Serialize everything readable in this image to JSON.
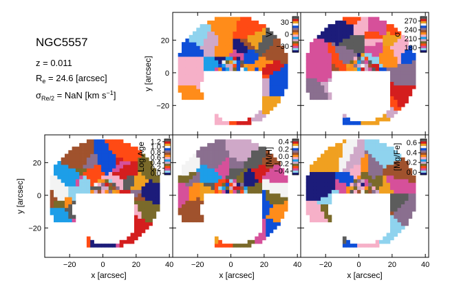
{
  "galaxy": {
    "name": "NGC5557",
    "redshift_text": "z = 0.011",
    "re_prefix": "R",
    "re_sub": "e",
    "re_value": " = 24.6 [arcsec]",
    "sigma_prefix": "σ",
    "sigma_sub": "Re/2",
    "sigma_value": " = NaN [km s",
    "sigma_sup": "−1",
    "sigma_suffix": "]"
  },
  "colors": {
    "colormap": [
      "#1c1c7a",
      "#0e4fd8",
      "#1d9ee8",
      "#8fd3ee",
      "#f3f3f3",
      "#f6b0c8",
      "#d6509a",
      "#f0a020",
      "#ff8c1a",
      "#ff4a14",
      "#d41e1e",
      "#a0522d",
      "#7a6a2a",
      "#5c5c5c",
      "#8a6f8f",
      "#cfa8c8"
    ],
    "frame": "#000000",
    "background": "#ffffff"
  },
  "chart_data": [
    {
      "type": "heatmap",
      "map": "velocity",
      "colorbar_label": "V",
      "colorbar_ticks": [
        "30",
        "0",
        "−30"
      ],
      "colorbar_range": [
        -45,
        45
      ],
      "xlim": [
        -35,
        42
      ],
      "ylim": [
        -38,
        37
      ],
      "x_ticks": [
        "−20",
        "0",
        "20",
        "40"
      ],
      "y_ticks": [
        "20",
        "0",
        "−20"
      ],
      "xlabel": "",
      "ylabel": "y [arcsec]"
    },
    {
      "type": "heatmap",
      "map": "dispersion",
      "colorbar_label": "σ",
      "colorbar_ticks": [
        "270",
        "240",
        "210",
        "180"
      ],
      "colorbar_range": [
        165,
        285
      ],
      "xlim": [
        -35,
        42
      ],
      "ylim": [
        -38,
        37
      ],
      "x_ticks": [
        "−20",
        "0",
        "20",
        "40"
      ],
      "y_ticks": [
        "20",
        "0",
        "−20"
      ],
      "xlabel": "",
      "ylabel": ""
    },
    {
      "type": "heatmap",
      "map": "log_age",
      "colorbar_label": "Log Age",
      "colorbar_ticks": [
        "1.2",
        "1.0",
        "0.8",
        "0.6",
        "0.4",
        "0.2",
        "0.0"
      ],
      "colorbar_range": [
        -0.05,
        1.3
      ],
      "xlim": [
        -35,
        42
      ],
      "ylim": [
        -38,
        37
      ],
      "x_ticks": [
        "−20",
        "0",
        "20",
        "40"
      ],
      "y_ticks": [
        "20",
        "0",
        "−20"
      ],
      "xlabel": "x [arcsec]",
      "ylabel": "y [arcsec]"
    },
    {
      "type": "heatmap",
      "map": "metallicity",
      "colorbar_label": "[M/H]",
      "colorbar_ticks": [
        "0.4",
        "0.2",
        "0.0",
        "−0.2",
        "−0.4"
      ],
      "colorbar_range": [
        -0.5,
        0.48
      ],
      "xlim": [
        -35,
        42
      ],
      "ylim": [
        -38,
        37
      ],
      "x_ticks": [
        "−20",
        "0",
        "20",
        "40"
      ],
      "y_ticks": [
        "20",
        "0",
        "−20"
      ],
      "xlabel": "x [arcsec]",
      "ylabel": ""
    },
    {
      "type": "heatmap",
      "map": "alpha",
      "colorbar_label": "[Mg/Fe]",
      "colorbar_ticks": [
        "0.6",
        "0.4",
        "0.2",
        "0.0"
      ],
      "colorbar_range": [
        -0.05,
        0.68
      ],
      "xlim": [
        -35,
        42
      ],
      "ylim": [
        -38,
        37
      ],
      "x_ticks": [
        "−20",
        "0",
        "20",
        "40"
      ],
      "y_ticks": [
        "20",
        "0",
        "−20"
      ],
      "xlabel": "x [arcsec]",
      "ylabel": ""
    }
  ]
}
